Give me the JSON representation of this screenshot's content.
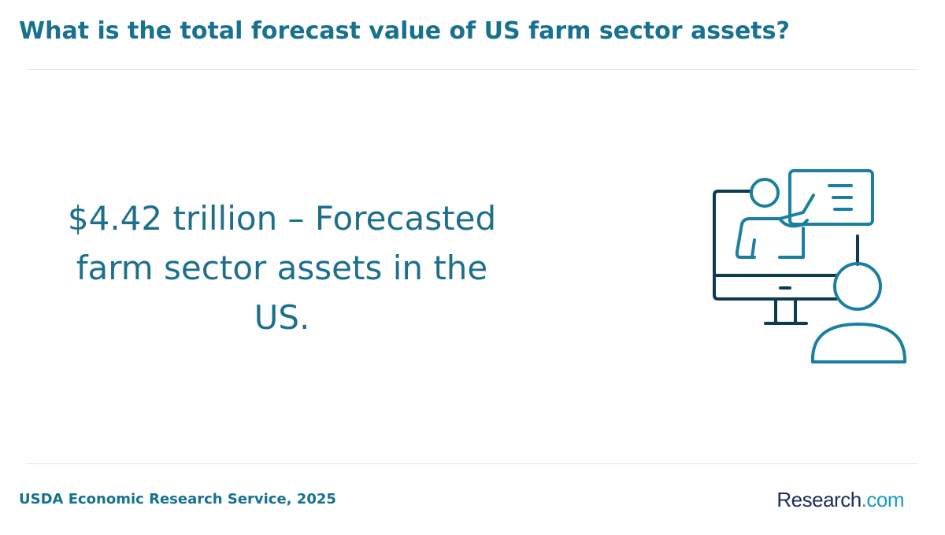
{
  "header": {
    "title": "What is the total forecast value of US farm sector assets?"
  },
  "statement": "$4.42 trillion – Forecasted farm sector assets in the US.",
  "footer": {
    "source": "USDA Economic Research Service, 2025",
    "logo": {
      "name": "Research",
      "suffix": ".com"
    }
  }
}
